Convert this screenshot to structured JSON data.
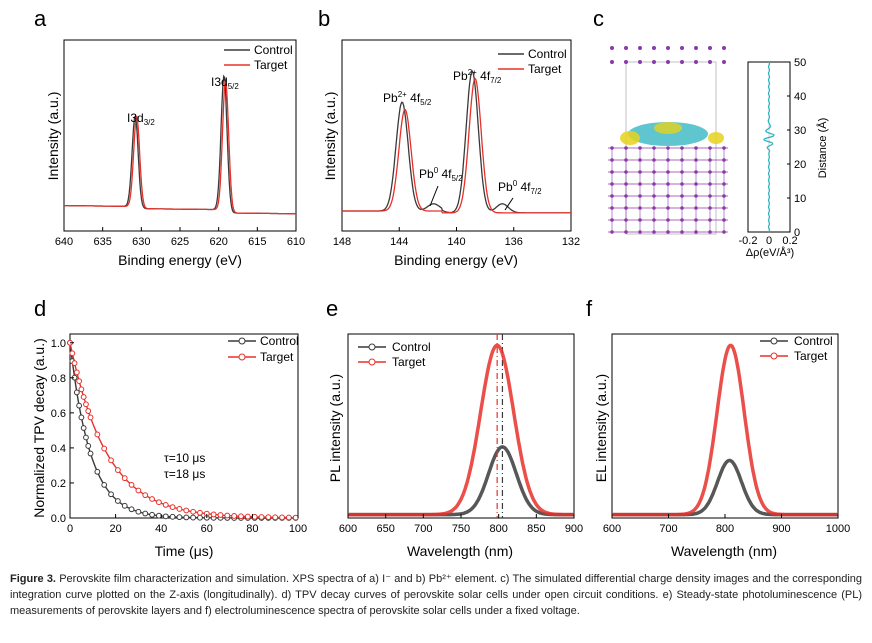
{
  "panels": {
    "a": {
      "label": "a",
      "xlabel": "Binding energy (eV)",
      "ylabel": "Intensity (a.u.)"
    },
    "b": {
      "label": "b",
      "xlabel": "Binding energy (eV)",
      "ylabel": "Intensity (a.u.)"
    },
    "c": {
      "label": "c",
      "ylabel": "Distance (Å)",
      "xlabel": "Δρ(eV/Å³)"
    },
    "d": {
      "label": "d",
      "xlabel": "Time (μs)",
      "ylabel": "Normalized TPV decay (a.u.)",
      "tau_control": "τ=10 μs",
      "tau_target": "τ=18 μs"
    },
    "e": {
      "label": "e",
      "xlabel": "Wavelength (nm)",
      "ylabel": "PL intensity (a.u.)"
    },
    "f": {
      "label": "f",
      "xlabel": "Wavelength (nm)",
      "ylabel": "EL intensity (a.u.)"
    }
  },
  "annotations": {
    "a_peak1": "I3d3/2",
    "a_peak2": "I3d5/2",
    "b_peak1": "Pb2+ 4f5/2",
    "b_peak2": "Pb2+ 4f7/2",
    "b_peak3": "Pb0 4f5/2",
    "b_peak4": "Pb0 4f7/2"
  },
  "colors": {
    "control": "#3a3a3a",
    "target": "#e8302a",
    "cyan": "#2ab3c0",
    "yellow": "#e6d21c",
    "purple": "#8a3aa8"
  },
  "caption": {
    "lead": "Figure 3.",
    "text": "Perovskite film characterization and simulation. XPS spectra of a) I⁻ and b) Pb²⁺ element. c) The simulated differential charge density images and the corresponding integration curve plotted on the Z-axis (longitudinally). d) TPV decay curves of perovskite solar cells under open circuit conditions. e) Steady-state photoluminescence (PL) measurements of perovskite layers and f) electroluminescence spectra of perovskite solar cells under a fixed voltage."
  },
  "chart_data": [
    {
      "id": "a",
      "type": "line",
      "xlabel": "Binding energy (eV)",
      "ylabel": "Intensity (a.u.)",
      "xlim": [
        640,
        610
      ],
      "xticks": [
        640,
        635,
        630,
        625,
        620,
        615,
        610
      ],
      "series": [
        {
          "name": "Control",
          "peaks": [
            [
              630.8,
              0.5
            ],
            [
              619.3,
              0.74
            ]
          ],
          "width": 0.55
        },
        {
          "name": "Target",
          "peaks": [
            [
              630.6,
              0.5
            ],
            [
              619.1,
              0.72
            ]
          ],
          "width": 0.55
        }
      ]
    },
    {
      "id": "b",
      "type": "line",
      "xlabel": "Binding energy (eV)",
      "ylabel": "Intensity (a.u.)",
      "xlim": [
        148,
        132
      ],
      "xticks": [
        148,
        144,
        140,
        136,
        132
      ],
      "series": [
        {
          "name": "Control",
          "peaks": [
            [
              143.8,
              0.6
            ],
            [
              138.9,
              0.78
            ],
            [
              141.6,
              0.04
            ],
            [
              136.8,
              0.05
            ]
          ]
        },
        {
          "name": "Target",
          "peaks": [
            [
              143.6,
              0.56
            ],
            [
              138.7,
              0.74
            ]
          ]
        }
      ]
    },
    {
      "id": "c",
      "type": "line",
      "xlabel": "Δρ(eV/Å³)",
      "ylabel": "Distance (Å)",
      "xlim": [
        -0.2,
        0.2
      ],
      "ylim": [
        0,
        50
      ],
      "xticks": [
        -0.2,
        0,
        0.2
      ],
      "yticks": [
        0,
        10,
        20,
        30,
        40,
        50
      ]
    },
    {
      "id": "d",
      "type": "scatter",
      "xlabel": "Time (μs)",
      "ylabel": "Normalized TPV decay (a.u.)",
      "xlim": [
        0,
        100
      ],
      "ylim": [
        0,
        1.05
      ],
      "xticks": [
        0,
        20,
        40,
        60,
        80,
        100
      ],
      "yticks": [
        0.0,
        0.2,
        0.4,
        0.6,
        0.8,
        1.0
      ],
      "series": [
        {
          "name": "Control",
          "tau": 10
        },
        {
          "name": "Target",
          "tau": 18
        }
      ]
    },
    {
      "id": "e",
      "type": "line",
      "xlabel": "Wavelength (nm)",
      "ylabel": "PL intensity (a.u.)",
      "xlim": [
        600,
        900
      ],
      "xticks": [
        600,
        650,
        700,
        750,
        800,
        850,
        900
      ],
      "series": [
        {
          "name": "Control",
          "center": 805,
          "amp": 0.4,
          "width": 26
        },
        {
          "name": "Target",
          "center": 798,
          "amp": 1.0,
          "width": 31
        }
      ]
    },
    {
      "id": "f",
      "type": "line",
      "xlabel": "Wavelength (nm)",
      "ylabel": "EL intensity (a.u.)",
      "xlim": [
        600,
        1000
      ],
      "xticks": [
        600,
        700,
        800,
        900,
        1000
      ],
      "series": [
        {
          "name": "Control",
          "center": 808,
          "amp": 0.32,
          "width": 30
        },
        {
          "name": "Target",
          "center": 810,
          "amp": 1.0,
          "width": 34
        }
      ]
    }
  ]
}
